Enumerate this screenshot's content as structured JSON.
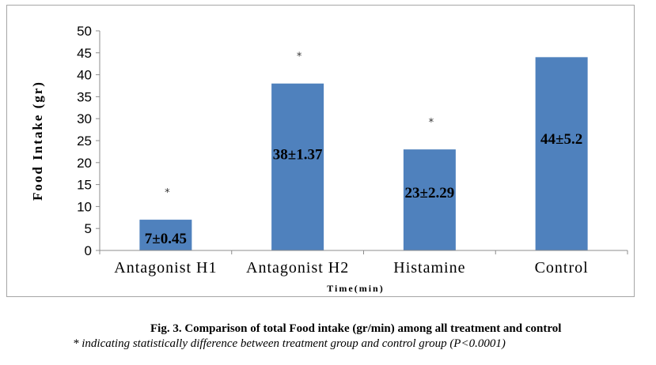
{
  "chart_data": {
    "type": "bar",
    "categories": [
      "Antagonist H1",
      "Antagonist H2",
      "Histamine",
      "Control"
    ],
    "values": [
      7,
      38,
      23,
      44
    ],
    "data_labels": [
      "7±0.45",
      "38±1.37",
      "23±2.29",
      "44±5.2"
    ],
    "significance": [
      true,
      true,
      true,
      false
    ],
    "significance_marker": "*",
    "ylabel": "Food Intake (gr)",
    "xlabel": "Time(min)",
    "ylim": [
      0,
      50
    ],
    "yticks": [
      0,
      5,
      10,
      15,
      20,
      25,
      30,
      35,
      40,
      45,
      50
    ],
    "bar_color": "#4f81bd",
    "grid": false,
    "legend": "none"
  },
  "caption": {
    "title": "Fig. 3. Comparison of total Food intake (gr/min) among all treatment and control",
    "note": "* indicating statistically difference between treatment group and control group (P<0.0001)"
  }
}
